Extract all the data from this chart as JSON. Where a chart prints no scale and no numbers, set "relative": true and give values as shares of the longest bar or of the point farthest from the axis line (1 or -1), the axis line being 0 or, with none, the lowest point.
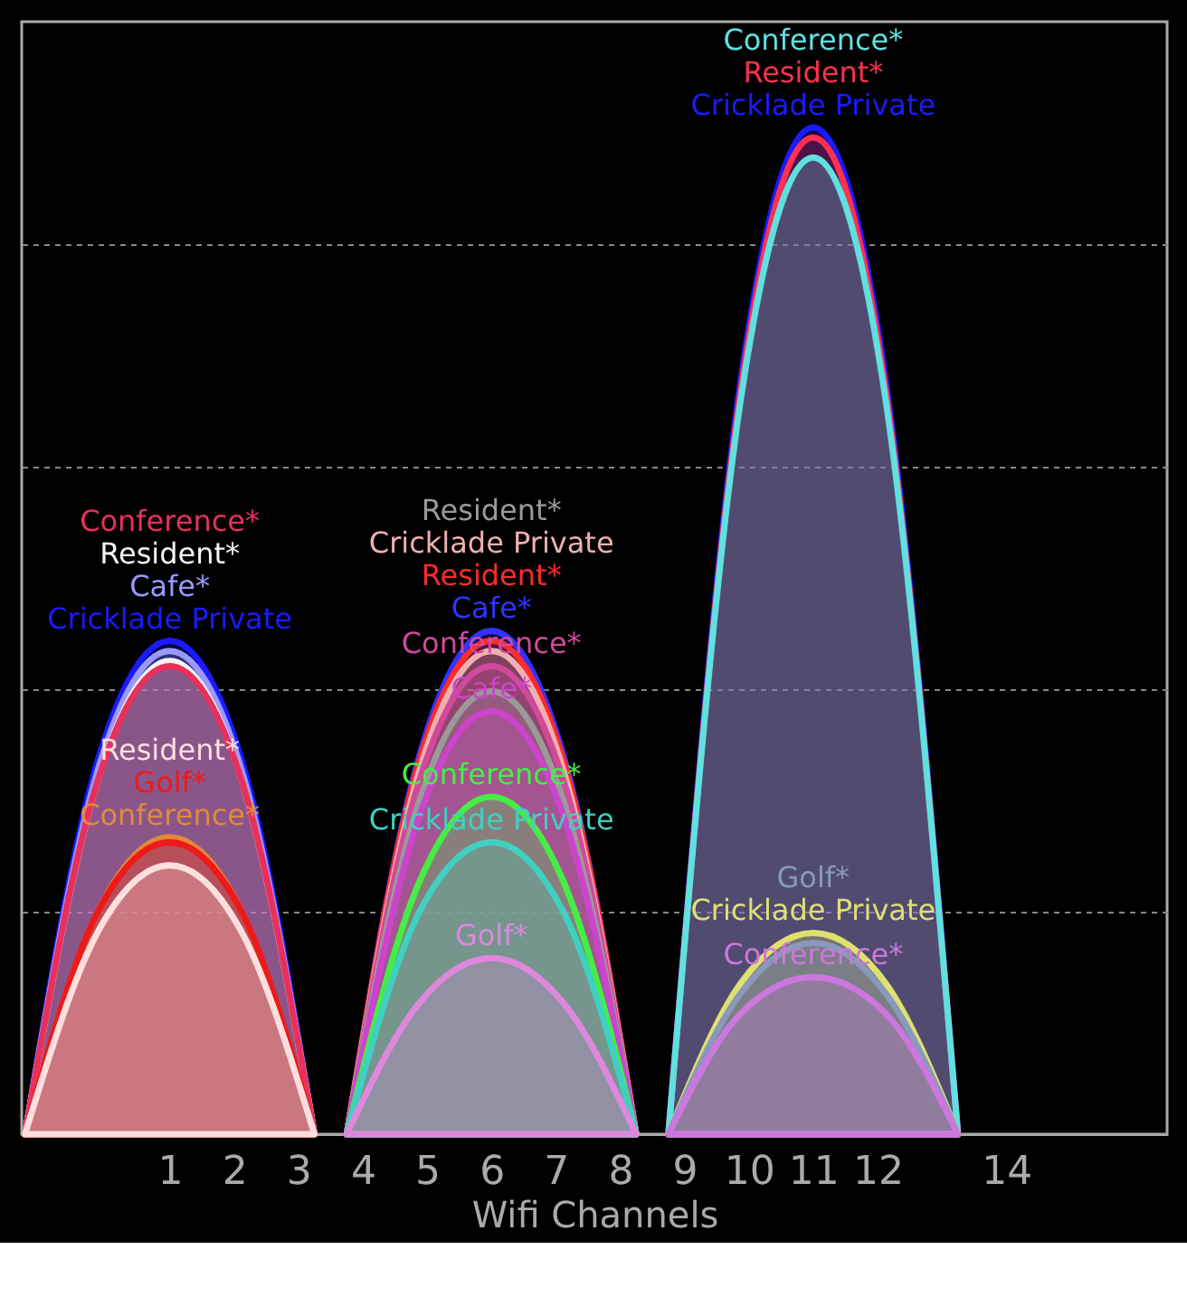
{
  "chart_data": {
    "type": "area",
    "relative": true,
    "xlabel": "Wifi Channels",
    "xlim": [
      -1.3,
      16.5
    ],
    "xticks": [
      1,
      2,
      3,
      4,
      5,
      6,
      7,
      8,
      9,
      10,
      11,
      12,
      14
    ],
    "grid": "y",
    "legend": false,
    "tick_labels": "x",
    "line_style": "solid",
    "marker": "none",
    "series": [
      {
        "name": "Cricklade Private",
        "color": "#1a1aff",
        "x": [
          -1.25,
          -0.125,
          1,
          2.125,
          3.25
        ],
        "values": [
          0,
          0.37,
          0.49,
          0.37,
          0
        ]
      },
      {
        "name": "Cafe*",
        "color": "#9999ff",
        "x": [
          -1.25,
          -0.125,
          1,
          2.125,
          3.25
        ],
        "values": [
          0,
          0.36,
          0.48,
          0.36,
          0
        ]
      },
      {
        "name": "Resident*",
        "color": "#f4f4f4",
        "x": [
          -1.25,
          -0.125,
          1,
          2.125,
          3.25
        ],
        "values": [
          0,
          0.35,
          0.47,
          0.35,
          0
        ]
      },
      {
        "name": "Conference*",
        "color": "#e8305c",
        "x": [
          -1.25,
          -0.125,
          1,
          2.125,
          3.25
        ],
        "values": [
          0,
          0.35,
          0.465,
          0.35,
          0
        ]
      },
      {
        "name": "Conference*",
        "color": "#e08a3a",
        "x": [
          -1.25,
          -0.125,
          1,
          2.125,
          3.25
        ],
        "values": [
          0,
          0.22,
          0.295,
          0.22,
          0
        ]
      },
      {
        "name": "Golf*",
        "color": "#ee1a1a",
        "x": [
          -1.25,
          -0.125,
          1,
          2.125,
          3.25
        ],
        "values": [
          0,
          0.22,
          0.29,
          0.22,
          0
        ]
      },
      {
        "name": "Resident*",
        "color": "#ffdede",
        "x": [
          -1.25,
          -0.125,
          1,
          2.125,
          3.25
        ],
        "values": [
          0,
          0.2,
          0.267,
          0.2,
          0
        ]
      },
      {
        "name": "Cafe*",
        "color": "#3333ff",
        "x": [
          3.75,
          4.875,
          6,
          7.125,
          8.25
        ],
        "values": [
          0,
          0.375,
          0.5,
          0.375,
          0
        ]
      },
      {
        "name": "Resident*",
        "color": "#ff2a2a",
        "x": [
          3.75,
          4.875,
          6,
          7.125,
          8.25
        ],
        "values": [
          0,
          0.37,
          0.49,
          0.37,
          0
        ]
      },
      {
        "name": "Cricklade Private",
        "color": "#f0b0b0",
        "x": [
          3.75,
          4.875,
          6,
          7.125,
          8.25
        ],
        "values": [
          0,
          0.36,
          0.48,
          0.36,
          0
        ]
      },
      {
        "name": "Conference*",
        "color": "#d04a9a",
        "x": [
          3.75,
          4.875,
          6,
          7.125,
          8.25
        ],
        "values": [
          0,
          0.35,
          0.465,
          0.35,
          0
        ]
      },
      {
        "name": "Resident*",
        "color": "#9a9a9a",
        "x": [
          3.75,
          4.875,
          6,
          7.125,
          8.25
        ],
        "values": [
          0,
          0.33,
          0.44,
          0.33,
          0
        ]
      },
      {
        "name": "Cafe*",
        "color": "#cc44cc",
        "x": [
          3.75,
          4.875,
          6,
          7.125,
          8.25
        ],
        "values": [
          0,
          0.315,
          0.42,
          0.315,
          0
        ]
      },
      {
        "name": "Conference*",
        "color": "#44ee44",
        "x": [
          3.75,
          4.875,
          6,
          7.125,
          8.25
        ],
        "values": [
          0,
          0.25,
          0.335,
          0.25,
          0
        ]
      },
      {
        "name": "Cricklade Private",
        "color": "#40d0c0",
        "x": [
          3.75,
          4.875,
          6,
          7.125,
          8.25
        ],
        "values": [
          0,
          0.22,
          0.29,
          0.22,
          0
        ]
      },
      {
        "name": "Golf*",
        "color": "#dd88dd",
        "x": [
          3.75,
          4.875,
          6,
          7.125,
          8.25
        ],
        "values": [
          0,
          0.13,
          0.175,
          0.13,
          0
        ]
      },
      {
        "name": "Cricklade Private",
        "color": "#1a1aff",
        "x": [
          8.75,
          9.875,
          11,
          12.125,
          13.25
        ],
        "values": [
          0,
          0.75,
          1,
          0.75,
          0
        ]
      },
      {
        "name": "Resident*",
        "color": "#ff3050",
        "x": [
          8.75,
          9.875,
          11,
          12.125,
          13.25
        ],
        "values": [
          0,
          0.74,
          0.99,
          0.74,
          0
        ]
      },
      {
        "name": "Conference*",
        "color": "#60e0e0",
        "x": [
          8.75,
          9.875,
          11,
          12.125,
          13.25
        ],
        "values": [
          0,
          0.73,
          0.97,
          0.73,
          0
        ]
      },
      {
        "name": "Cricklade Private",
        "color": "#e0e070",
        "x": [
          8.75,
          9.875,
          11,
          12.125,
          13.25
        ],
        "values": [
          0,
          0.15,
          0.2,
          0.15,
          0
        ]
      },
      {
        "name": "Golf*",
        "color": "#8899bb",
        "x": [
          8.75,
          9.875,
          11,
          12.125,
          13.25
        ],
        "values": [
          0,
          0.14,
          0.19,
          0.14,
          0
        ]
      },
      {
        "name": "Conference*",
        "color": "#cc77dd",
        "x": [
          8.75,
          9.875,
          11,
          12.125,
          13.25
        ],
        "values": [
          0,
          0.12,
          0.156,
          0.12,
          0
        ]
      }
    ]
  }
}
